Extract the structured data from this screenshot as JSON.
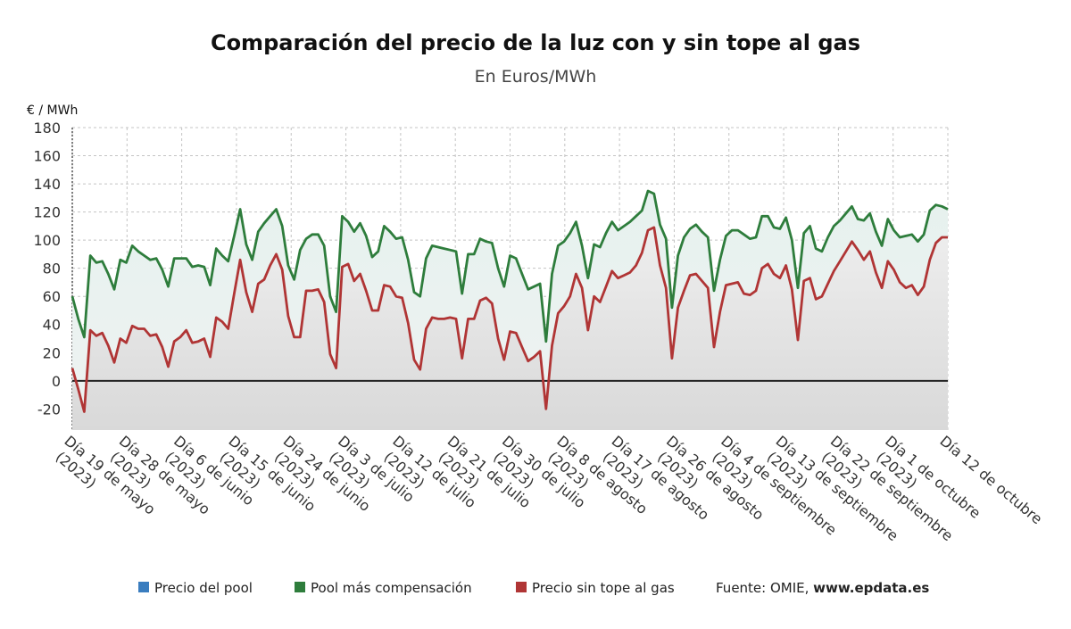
{
  "chart_data": {
    "type": "line",
    "title": "Comparación del precio de la luz con y sin tope al gas",
    "subtitle": "En Euros/MWh",
    "ylabel": "€ / MWh",
    "ylim": [
      -35,
      180
    ],
    "yticks": [
      180,
      160,
      140,
      120,
      100,
      80,
      60,
      40,
      20,
      0,
      -20
    ],
    "grid": true,
    "legend_position": "bottom",
    "x_tick_labels": [
      {
        "line1": "Día 19 de mayo",
        "line2": "(2023)"
      },
      {
        "line1": "Día 28 de mayo",
        "line2": "(2023)"
      },
      {
        "line1": "Día 6 de junio",
        "line2": "(2023)"
      },
      {
        "line1": "Día 15 de junio",
        "line2": "(2023)"
      },
      {
        "line1": "Día 24 de junio",
        "line2": "(2023)"
      },
      {
        "line1": "Día 3 de julio",
        "line2": "(2023)"
      },
      {
        "line1": "Día 12 de julio",
        "line2": "(2023)"
      },
      {
        "line1": "Día 21 de julio",
        "line2": "(2023)"
      },
      {
        "line1": "Día 30 de julio",
        "line2": "(2023)"
      },
      {
        "line1": "Día 8 de agosto",
        "line2": "(2023)"
      },
      {
        "line1": "Día 17 de agosto",
        "line2": "(2023)"
      },
      {
        "line1": "Día 26 de agosto",
        "line2": "(2023)"
      },
      {
        "line1": "Día 4 de septiembre",
        "line2": "(2023)"
      },
      {
        "line1": "Día 13 de septiembre",
        "line2": "(2023)"
      },
      {
        "line1": "Día 22 de septiembre",
        "line2": "(2023)"
      },
      {
        "line1": "Día 1 de octubre",
        "line2": "(2023)"
      },
      {
        "line1": "Día 12 de octubre",
        "line2": ""
      }
    ],
    "series": [
      {
        "name": "Precio del pool",
        "color": "#3a7dbf",
        "values": []
      },
      {
        "name": "Pool más compensación",
        "color": "#2e7d3c",
        "values": [
          60,
          44,
          31,
          89,
          84,
          85,
          76,
          65,
          86,
          84,
          96,
          92,
          89,
          86,
          87,
          79,
          67,
          87,
          87,
          87,
          81,
          82,
          81,
          68,
          94,
          89,
          85,
          103,
          122,
          97,
          86,
          106,
          112,
          117,
          122,
          110,
          82,
          72,
          93,
          101,
          104,
          104,
          96,
          60,
          49,
          117,
          113,
          106,
          112,
          103,
          88,
          92,
          110,
          106,
          101,
          102,
          86,
          63,
          60,
          87,
          96,
          95,
          94,
          93,
          92,
          62,
          90,
          90,
          101,
          99,
          98,
          80,
          67,
          89,
          87,
          76,
          65,
          67,
          69,
          28,
          76,
          96,
          99,
          105,
          113,
          96,
          73,
          97,
          95,
          105,
          113,
          107,
          110,
          113,
          117,
          121,
          135,
          133,
          111,
          101,
          52,
          89,
          102,
          108,
          111,
          106,
          102,
          64,
          86,
          103,
          107,
          107,
          104,
          101,
          102,
          117,
          117,
          109,
          108,
          116,
          100,
          66,
          105,
          110,
          94,
          92,
          102,
          110,
          114,
          119,
          124,
          115,
          114,
          119,
          106,
          96,
          115,
          107,
          102,
          103,
          104,
          99,
          104,
          121,
          125,
          124,
          122
        ]
      },
      {
        "name": "Precio sin tope al gas",
        "color": "#b03535",
        "values": [
          9,
          -6,
          -22,
          36,
          32,
          34,
          25,
          13,
          30,
          27,
          39,
          37,
          37,
          32,
          33,
          24,
          10,
          28,
          31,
          36,
          27,
          28,
          30,
          17,
          45,
          42,
          37,
          62,
          86,
          63,
          49,
          69,
          72,
          82,
          90,
          79,
          46,
          31,
          31,
          64,
          64,
          65,
          56,
          19,
          9,
          81,
          83,
          71,
          76,
          64,
          50,
          50,
          68,
          67,
          60,
          59,
          41,
          15,
          8,
          37,
          45,
          44,
          44,
          45,
          44,
          16,
          44,
          44,
          57,
          59,
          55,
          30,
          15,
          35,
          34,
          24,
          14,
          17,
          21,
          -20,
          25,
          48,
          53,
          60,
          76,
          66,
          36,
          60,
          56,
          67,
          78,
          73,
          75,
          77,
          82,
          91,
          107,
          109,
          82,
          66,
          16,
          52,
          64,
          75,
          76,
          71,
          66,
          24,
          49,
          68,
          69,
          70,
          62,
          61,
          64,
          80,
          83,
          76,
          73,
          82,
          65,
          29,
          71,
          73,
          58,
          60,
          69,
          78,
          85,
          92,
          99,
          93,
          86,
          92,
          77,
          66,
          85,
          79,
          70,
          66,
          68,
          61,
          67,
          86,
          98,
          102,
          102
        ]
      }
    ]
  },
  "legend": [
    {
      "label": "Precio del pool",
      "color": "#3a7dbf"
    },
    {
      "label": "Pool más compensación",
      "color": "#2e7d3c"
    },
    {
      "label": "Precio sin tope al gas",
      "color": "#b03535"
    }
  ],
  "source": {
    "prefix": "Fuente: OMIE, ",
    "site": "www.epdata.es"
  }
}
